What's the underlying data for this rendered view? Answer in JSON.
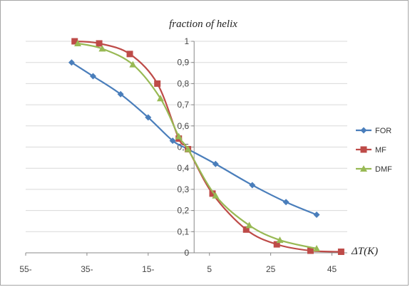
{
  "chart_data": {
    "type": "line",
    "title": "fraction of helix",
    "xlabel": "ΔT(K)",
    "ylabel": "",
    "xlim": [
      -55,
      50
    ],
    "ylim": [
      0,
      1
    ],
    "x_ticks": [
      {
        "value": -55,
        "label": "55-"
      },
      {
        "value": -35,
        "label": "35-"
      },
      {
        "value": -15,
        "label": "15-"
      },
      {
        "value": 5,
        "label": "5"
      },
      {
        "value": 25,
        "label": "25"
      },
      {
        "value": 45,
        "label": "45"
      }
    ],
    "y_ticks": [
      {
        "value": 0,
        "label": "0"
      },
      {
        "value": 0.1,
        "label": "0,1"
      },
      {
        "value": 0.2,
        "label": "0,2"
      },
      {
        "value": 0.3,
        "label": "0,3"
      },
      {
        "value": 0.4,
        "label": "0,4"
      },
      {
        "value": 0.5,
        "label": "0,5"
      },
      {
        "value": 0.6,
        "label": "0,6"
      },
      {
        "value": 0.7,
        "label": "0,7"
      },
      {
        "value": 0.8,
        "label": "0,8"
      },
      {
        "value": 0.9,
        "label": "0,9"
      },
      {
        "value": 1,
        "label": "1"
      }
    ],
    "grid": "horizontal",
    "legend": "right",
    "series": [
      {
        "name": "FOR",
        "color": "#4a7ebb",
        "marker": "diamond",
        "points": [
          [
            -40,
            0.9
          ],
          [
            -33,
            0.835
          ],
          [
            -24,
            0.75
          ],
          [
            -15,
            0.64
          ],
          [
            -7,
            0.53
          ],
          [
            -2,
            0.49
          ],
          [
            7,
            0.42
          ],
          [
            19,
            0.32
          ],
          [
            30,
            0.24
          ],
          [
            40,
            0.18
          ]
        ]
      },
      {
        "name": "MF",
        "color": "#be4b48",
        "marker": "square",
        "points": [
          [
            -39,
            1.0
          ],
          [
            -31,
            0.99
          ],
          [
            -21,
            0.94
          ],
          [
            -12,
            0.8
          ],
          [
            -5,
            0.54
          ],
          [
            -2,
            0.49
          ],
          [
            6,
            0.28
          ],
          [
            17,
            0.11
          ],
          [
            27,
            0.04
          ],
          [
            38,
            0.01
          ],
          [
            48,
            0.005
          ]
        ]
      },
      {
        "name": "DMF",
        "color": "#98b954",
        "marker": "triangle",
        "points": [
          [
            -38,
            0.99
          ],
          [
            -30,
            0.965
          ],
          [
            -20,
            0.89
          ],
          [
            -11,
            0.73
          ],
          [
            -5,
            0.55
          ],
          [
            -2,
            0.49
          ],
          [
            7,
            0.27
          ],
          [
            18,
            0.13
          ],
          [
            28,
            0.06
          ],
          [
            40,
            0.02
          ]
        ]
      }
    ]
  }
}
